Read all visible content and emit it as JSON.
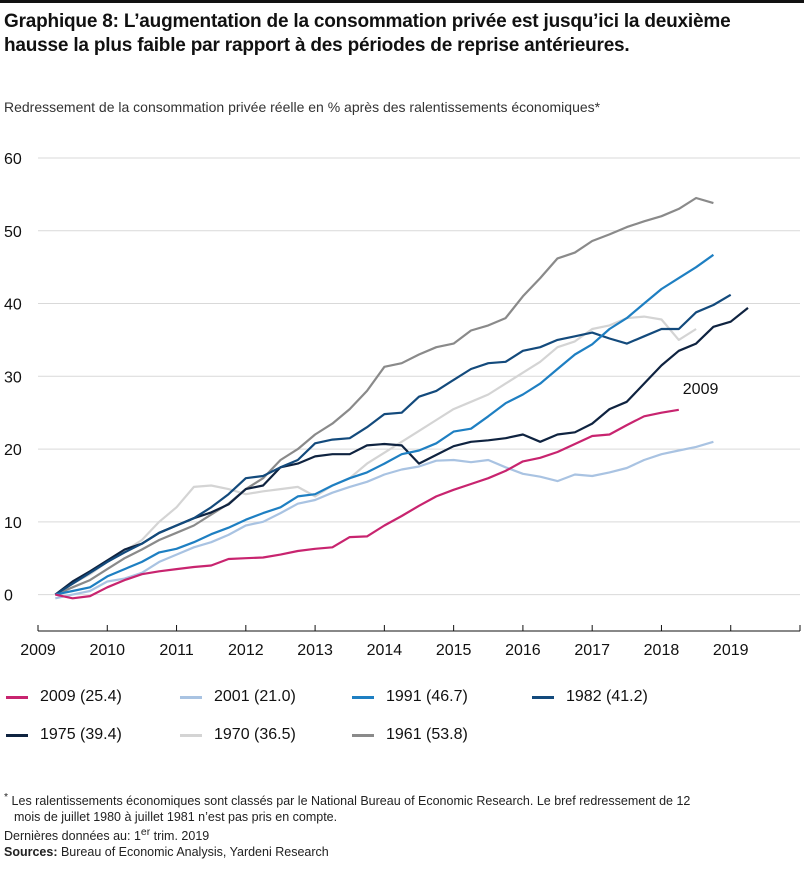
{
  "title": "Graphique 8: L’augmentation de la consommation privée est jusqu’ici la deuxième hausse la plus faible par rapport à des périodes de reprise antérieures.",
  "subtitle": "Redressement de la consommation privée réelle en % après des ralentissements économiques*",
  "footnote": {
    "star": "*",
    "line1": "Les ralentissements économiques sont classés par le National Bureau of Economic Research. Le bref redressement de 12",
    "line2": "mois de juillet 1980 à juillet 1981 n’est pas pris en compte.",
    "data_prefix": "Dernières données au: 1",
    "data_sup": "er",
    "data_suffix": " trim. 2019",
    "sources_label": "Sources:",
    "sources_text": " Bureau of Economic Analysis, Yardeni Research"
  },
  "chart_data": {
    "type": "line",
    "x_ticks": [
      "2009",
      "2010",
      "2011",
      "2012",
      "2013",
      "2014",
      "2015",
      "2016",
      "2017",
      "2018",
      "2019"
    ],
    "xlim": [
      "2009",
      "2020"
    ],
    "ylim": [
      -5,
      60
    ],
    "y_ticks": [
      0,
      10,
      20,
      30,
      40,
      50,
      60
    ],
    "grid": true,
    "legend_position": "bottom",
    "annotation": {
      "text": "2009",
      "series": "2009 (25.4)"
    },
    "series": [
      {
        "name": "2009 (25.4)",
        "color": "#c8246f",
        "x_start": "2009 Q2",
        "values": [
          0,
          -0.5,
          -0.2,
          1.0,
          2.0,
          2.8,
          3.2,
          3.5,
          3.8,
          4.0,
          4.9,
          5.0,
          5.1,
          5.5,
          6.0,
          6.3,
          6.5,
          7.9,
          8.0,
          9.5,
          10.8,
          12.2,
          13.5,
          14.4,
          15.2,
          16.0,
          17.0,
          18.3,
          18.8,
          19.6,
          20.7,
          21.8,
          22.0,
          23.3,
          24.5,
          25.0,
          25.4
        ]
      },
      {
        "name": "2001 (21.0)",
        "color": "#a9c3e2",
        "x_start": "2009 Q2",
        "values": [
          -0.5,
          0,
          0.5,
          1.8,
          2.2,
          3.0,
          4.5,
          5.5,
          6.5,
          7.2,
          8.2,
          9.5,
          10.0,
          11.2,
          12.5,
          13.0,
          14.0,
          14.8,
          15.5,
          16.5,
          17.2,
          17.6,
          18.4,
          18.5,
          18.2,
          18.5,
          17.5,
          16.6,
          16.2,
          15.6,
          16.5,
          16.3,
          16.8,
          17.4,
          18.5,
          19.3,
          19.8,
          20.3,
          21.0
        ]
      },
      {
        "name": "1991 (46.7)",
        "color": "#1e7fc2",
        "x_start": "2009 Q2",
        "values": [
          0,
          0.5,
          1.0,
          2.5,
          3.5,
          4.5,
          5.8,
          6.3,
          7.2,
          8.3,
          9.2,
          10.3,
          11.2,
          12.0,
          13.5,
          13.8,
          15.0,
          16.0,
          16.8,
          18.0,
          19.3,
          19.8,
          20.8,
          22.4,
          22.8,
          24.5,
          26.3,
          27.5,
          29.0,
          31.0,
          33.0,
          34.4,
          36.5,
          38.0,
          40.0,
          42.0,
          43.5,
          45.0,
          46.7
        ]
      },
      {
        "name": "1982 (41.2)",
        "color": "#134a7c",
        "x_start": "2009 Q2",
        "values": [
          0,
          1.5,
          3.0,
          4.5,
          5.8,
          7.0,
          8.5,
          9.5,
          10.5,
          12.0,
          13.8,
          16.0,
          16.3,
          17.5,
          18.5,
          20.8,
          21.3,
          21.5,
          23.0,
          24.8,
          25.0,
          27.2,
          28.0,
          29.5,
          31.0,
          31.8,
          32.0,
          33.5,
          34.0,
          35.0,
          35.5,
          36.0,
          35.2,
          34.5,
          35.5,
          36.5,
          36.5,
          38.8,
          39.8,
          41.2
        ]
      },
      {
        "name": "1975 (39.4)",
        "color": "#0f2340",
        "x_start": "2009 Q2",
        "values": [
          0,
          1.8,
          3.2,
          4.7,
          6.2,
          7.0,
          8.5,
          9.5,
          10.5,
          11.3,
          12.4,
          14.5,
          15.0,
          17.5,
          18.0,
          19.0,
          19.3,
          19.3,
          20.5,
          20.7,
          20.5,
          18.0,
          19.2,
          20.4,
          21.0,
          21.2,
          21.5,
          22.0,
          21.0,
          22.0,
          22.3,
          23.5,
          25.5,
          26.5,
          29.0,
          31.5,
          33.5,
          34.5,
          36.8,
          37.5,
          39.4
        ]
      },
      {
        "name": "1970 (36.5)",
        "color": "#d4d4d4",
        "x_start": "2009 Q2",
        "values": [
          0,
          1.5,
          2.8,
          4.5,
          6.0,
          7.5,
          10.0,
          12.0,
          14.8,
          15.0,
          14.5,
          13.8,
          14.2,
          14.5,
          14.8,
          13.5,
          15.0,
          16.0,
          18.0,
          19.5,
          21.0,
          22.5,
          24.0,
          25.5,
          26.5,
          27.5,
          29.0,
          30.5,
          32.0,
          34.0,
          34.8,
          36.5,
          37.0,
          38.0,
          38.2,
          37.8,
          35.0,
          36.5
        ]
      },
      {
        "name": "1961 (53.8)",
        "color": "#8a8a8a",
        "x_start": "2009 Q2",
        "values": [
          0,
          1.0,
          2.0,
          3.5,
          5.0,
          6.2,
          7.5,
          8.5,
          9.5,
          11.0,
          12.5,
          14.5,
          16.0,
          18.5,
          20.0,
          22.0,
          23.5,
          25.5,
          28.0,
          31.3,
          31.8,
          33.0,
          34.0,
          34.5,
          36.3,
          37.0,
          38.0,
          41.0,
          43.5,
          46.2,
          47.0,
          48.6,
          49.5,
          50.5,
          51.3,
          52.0,
          53.0,
          54.5,
          53.8
        ]
      }
    ]
  }
}
